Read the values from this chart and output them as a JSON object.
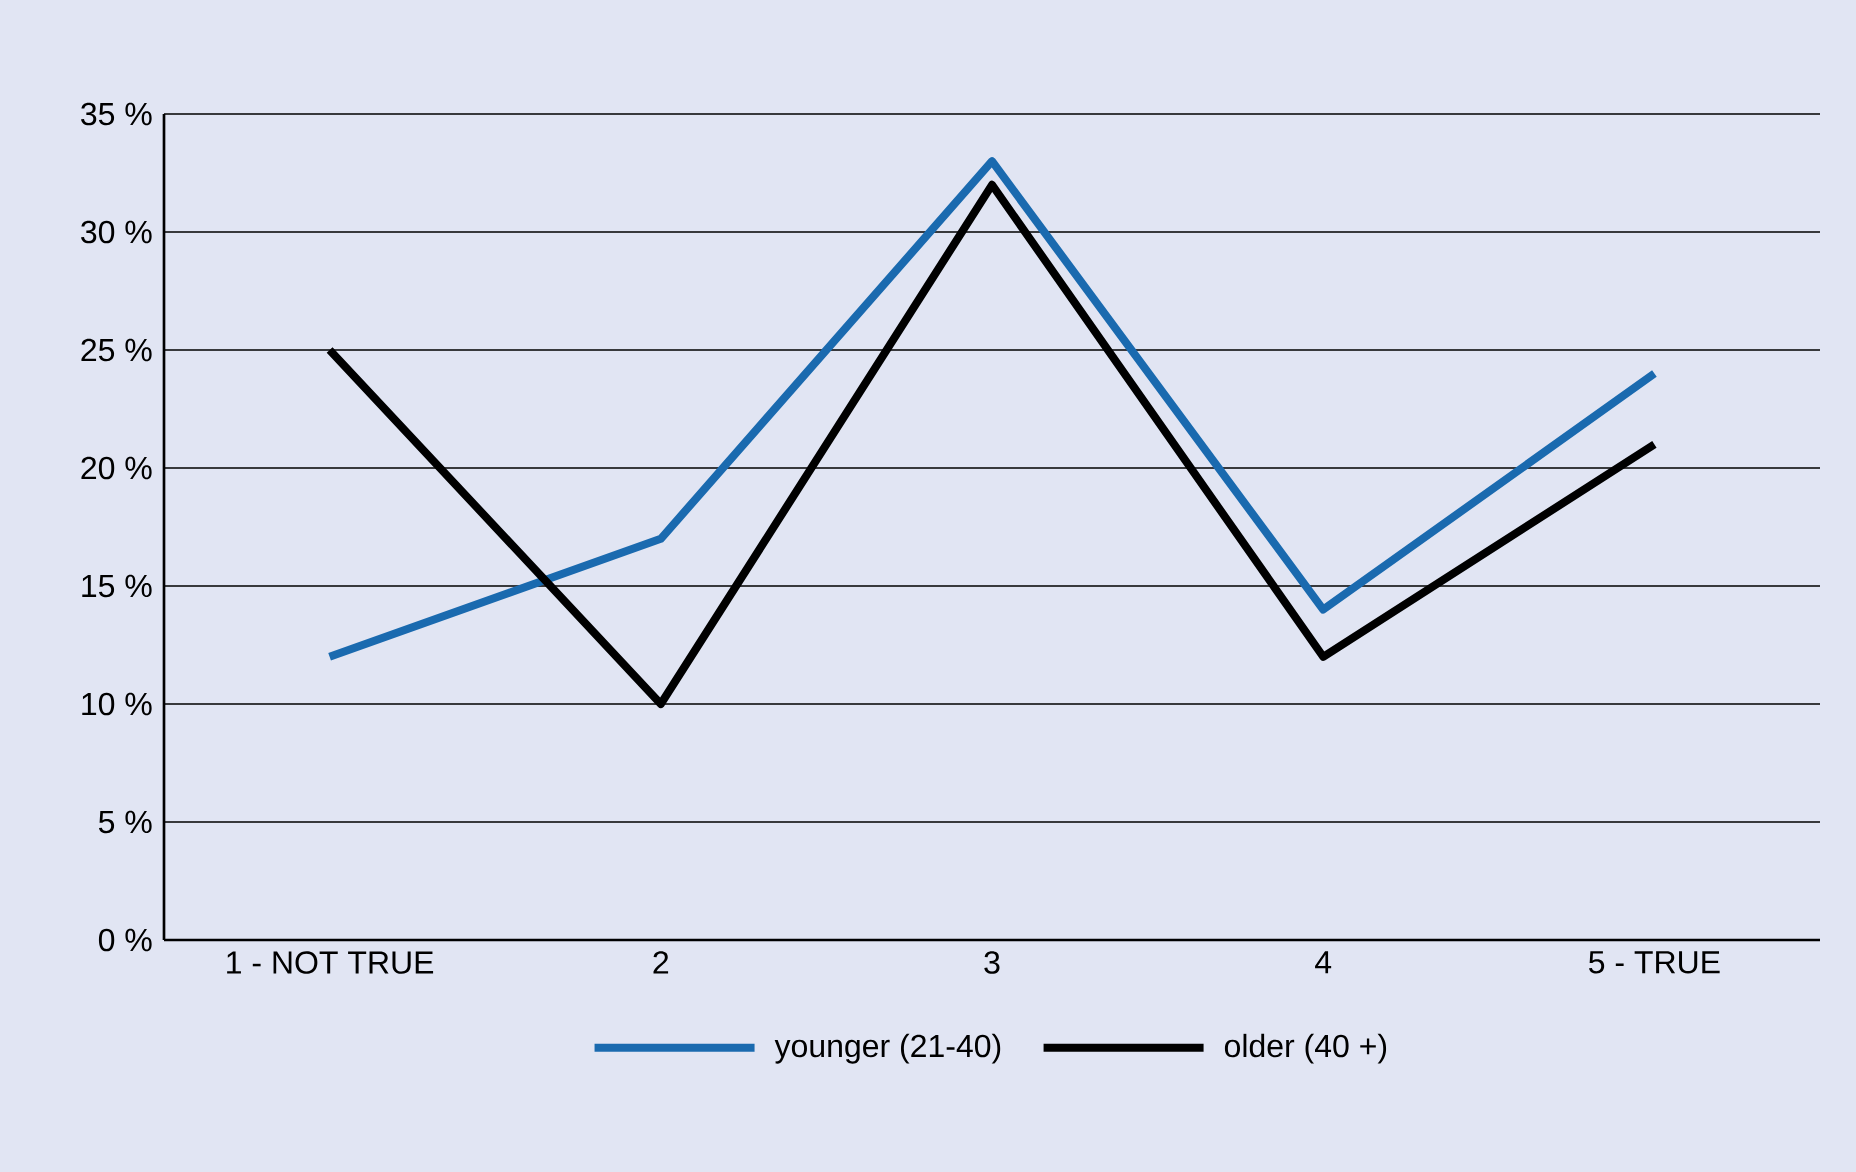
{
  "chart_data": {
    "type": "line",
    "categories": [
      "1 - NOT TRUE",
      "2",
      "3",
      "4",
      "5 - TRUE"
    ],
    "series": [
      {
        "name": "younger (21-40)",
        "color": "#1a6aaf",
        "values": [
          12,
          17,
          33,
          14,
          24
        ]
      },
      {
        "name": "older (40 +)",
        "color": "#000000",
        "values": [
          25,
          10,
          32,
          12,
          21
        ]
      }
    ],
    "ylim": [
      0,
      35
    ],
    "yticks": [
      {
        "value": 0,
        "label": "0 %"
      },
      {
        "value": 5,
        "label": "5 %"
      },
      {
        "value": 10,
        "label": "10 %"
      },
      {
        "value": 15,
        "label": "15 %"
      },
      {
        "value": 20,
        "label": "20 %"
      },
      {
        "value": 25,
        "label": "25 %"
      },
      {
        "value": 30,
        "label": "30 %"
      },
      {
        "value": 35,
        "label": "35 %"
      }
    ],
    "grid": "y",
    "legend": "bottom",
    "marker": "none",
    "line_style": "solid"
  }
}
